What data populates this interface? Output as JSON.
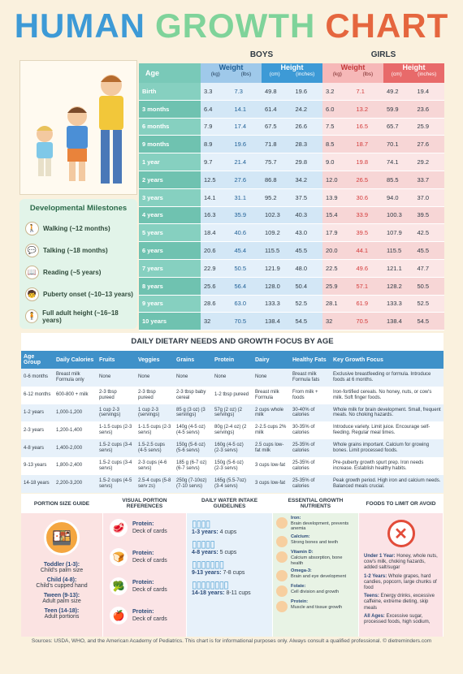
{
  "title": {
    "w1": "HUMAN",
    "w2": "GROWTH",
    "w3": "CHART"
  },
  "milestones": {
    "title": "Developmental Milestones",
    "items": [
      {
        "label": "Walking (~12 months)",
        "icon": "baby-walking-icon"
      },
      {
        "label": "Talking (~18 months)",
        "icon": "speech-icon"
      },
      {
        "label": "Reading (~5 years)",
        "icon": "book-icon"
      },
      {
        "label": "Puberty onset (~10–13 years)",
        "icon": "teen-icon"
      },
      {
        "label": "Full adult height (~16–18 years)",
        "icon": "adult-icon"
      }
    ]
  },
  "growth": {
    "boys_label": "BOYS",
    "girls_label": "GIRLS",
    "age_label": "Age",
    "weight_label": "Weight",
    "height_label": "Height",
    "units": [
      "(kg)",
      "(lbs)",
      "(cm)",
      "(inches)"
    ],
    "rows": [
      [
        "Birth",
        "3.3",
        "7.3",
        "49.8",
        "19.6",
        "3.2",
        "7.1",
        "49.2",
        "19.4"
      ],
      [
        "3 months",
        "6.4",
        "14.1",
        "61.4",
        "24.2",
        "6.0",
        "13.2",
        "59.9",
        "23.6"
      ],
      [
        "6 months",
        "7.9",
        "17.4",
        "67.5",
        "26.6",
        "7.5",
        "16.5",
        "65.7",
        "25.9"
      ],
      [
        "9 months",
        "8.9",
        "19.6",
        "71.8",
        "28.3",
        "8.5",
        "18.7",
        "70.1",
        "27.6"
      ],
      [
        "1 year",
        "9.7",
        "21.4",
        "75.7",
        "29.8",
        "9.0",
        "19.8",
        "74.1",
        "29.2"
      ],
      [
        "2 years",
        "12.5",
        "27.6",
        "86.8",
        "34.2",
        "12.0",
        "26.5",
        "85.5",
        "33.7"
      ],
      [
        "3 years",
        "14.1",
        "31.1",
        "95.2",
        "37.5",
        "13.9",
        "30.6",
        "94.0",
        "37.0"
      ],
      [
        "4 years",
        "16.3",
        "35.9",
        "102.3",
        "40.3",
        "15.4",
        "33.9",
        "100.3",
        "39.5"
      ],
      [
        "5 years",
        "18.4",
        "40.6",
        "109.2",
        "43.0",
        "17.9",
        "39.5",
        "107.9",
        "42.5"
      ],
      [
        "6 years",
        "20.6",
        "45.4",
        "115.5",
        "45.5",
        "20.0",
        "44.1",
        "115.5",
        "45.5"
      ],
      [
        "7 years",
        "22.9",
        "50.5",
        "121.9",
        "48.0",
        "22.5",
        "49.6",
        "121.1",
        "47.7"
      ],
      [
        "8 years",
        "25.6",
        "56.4",
        "128.0",
        "50.4",
        "25.9",
        "57.1",
        "128.2",
        "50.5"
      ],
      [
        "9 years",
        "28.6",
        "63.0",
        "133.3",
        "52.5",
        "28.1",
        "61.9",
        "133.3",
        "52.5"
      ],
      [
        "10 years",
        "32",
        "70.5",
        "138.4",
        "54.5",
        "32",
        "70.5",
        "138.4",
        "54.5"
      ]
    ],
    "colors": {
      "boys": "#3d9ad6",
      "girls": "#e86a6a",
      "age": "#79c9b8"
    }
  },
  "diet": {
    "title": "DAILY DIETARY NEEDS AND GROWTH FOCUS BY AGE",
    "headers": [
      "Age Group",
      "Daily Calories",
      "Fruits",
      "Veggies",
      "Grains",
      "Protein",
      "Dairy",
      "Healthy Fats",
      "Key Growth Focus"
    ],
    "rows": [
      [
        "0-6 months",
        "Breast milk Formula only",
        "None",
        "None",
        "None",
        "None",
        "None",
        "Breast milk Formula fats",
        "Exclusive breastfeeding or formula. Introduce foods at 6 months."
      ],
      [
        "6-12 months",
        "600-800 + milk",
        "2-3 tbsp pureed",
        "2-3 tbsp pureed",
        "2-3 tbsp baby cereal",
        "1-2 tbsp pureed",
        "Breast milk Formula",
        "From milk + foods",
        "Iron-fortified cereals. No honey, nuts, or cow's milk. Soft finger foods."
      ],
      [
        "1-2 years",
        "1,000-1,200",
        "1 cup 2-3 (servings)",
        "1 cup 2-3 (servings)",
        "85 g (3 oz) (3 servings)",
        "57g (2 oz) (2 servings)",
        "2 cups whole milk",
        "30-40% of calories",
        "Whole milk for brain development. Small, frequent meals. No choking hazards."
      ],
      [
        "2-3 years",
        "1,200-1,400",
        "1-1.5 cups (2-3 servs)",
        "1-1.5 cups (2-3 servs)",
        "140g (4-5 oz) (4-5 servs)",
        "80g (2-4 oz) (2 servings)",
        "2-2.5 cups 2% milk",
        "30-35% of calories",
        "Introduce variety. Limit juice. Encourage self-feeding. Regular meal times."
      ],
      [
        "4-8 years",
        "1,400-2,000",
        "1.5-2 cups (3-4 servs)",
        "1.5-2.5 cups (4-5 servs)",
        "150g (5-6 oz) (5-6 servs)",
        "160g (4-5 oz) (2-3 servs)",
        "2.5 cups low-fat milk",
        "25-35% of calories",
        "Whole grains important. Calcium for growing bones. Limit processed foods."
      ],
      [
        "9-13 years",
        "1,800-2,400",
        "1.5-2 cups (3-4 servs)",
        "2-3 cups (4-6 servs)",
        "185 g (6-7 oz) (6-7 servs)",
        "150g (5-6 oz) (2-3 servs)",
        "3 cups low-fat",
        "25-35% of calories",
        "Pre-puberty growth spurt prep. Iron needs increase. Establish healthy habits."
      ],
      [
        "14-18 years",
        "2,200-3,200",
        "1.5-2 cups (4-5 servs)",
        "2.5-4 cups (5-8 serv zs)",
        "250g (7-10oz) (7-10 servs)",
        "165g (5.5-7oz) (3-4 servs)",
        "3 cups low-fat",
        "25-35% of calories",
        "Peak growth period. High iron and calcium needs. Balanced meals crucial."
      ]
    ]
  },
  "portion": {
    "title": "PORTION SIZE GUIDE",
    "items": [
      {
        "label": "Toddler (1-3):",
        "text": "Child's palm size"
      },
      {
        "label": "Child (4-8):",
        "text": "Child's cupped hand"
      },
      {
        "label": "Tween (9-13):",
        "text": "Adult palm size"
      },
      {
        "label": "Teen (14-18):",
        "text": "Adult portions"
      }
    ]
  },
  "visual": {
    "title": "VISUAL PORTION REFERENCES",
    "items": [
      {
        "label": "Protein:",
        "text": "Deck of cards"
      },
      {
        "label": "Protein:",
        "text": "Deck of cards"
      },
      {
        "label": "Protein:",
        "text": "Deck of cards"
      },
      {
        "label": "Protein:",
        "text": "Deck of cards"
      }
    ]
  },
  "water": {
    "title": "DAILY WATER INTAKE GUIDELINES",
    "items": [
      {
        "label": "1-3 years:",
        "text": "4 cups",
        "cups": 4
      },
      {
        "label": "4-8 years:",
        "text": "5 cups",
        "cups": 5
      },
      {
        "label": "9-13 years:",
        "text": "7-8 cups",
        "cups": 7
      },
      {
        "label": "14-18 years:",
        "text": "8-11 cups",
        "cups": 8
      }
    ]
  },
  "nutrients": {
    "title": "ESSENTIAL GROWTH NUTRIENTS",
    "items": [
      {
        "label": "Iron:",
        "text": "Brain development, prevents anemia"
      },
      {
        "label": "Calcium:",
        "text": "Strong bones and teeth"
      },
      {
        "label": "Vitamin D:",
        "text": "Calcium absorption, bone health"
      },
      {
        "label": "Omega-3:",
        "text": "Brain and eye development"
      },
      {
        "label": "Folate:",
        "text": "Cell division and growth"
      },
      {
        "label": "Protein:",
        "text": "Muscle and tissue growth"
      }
    ]
  },
  "avoid": {
    "title": "FOODS TO LIMIT OR AVOID",
    "items": [
      {
        "label": "Under 1 Year:",
        "text": "Honey, whole nuts, cow's milk, choking hazards, added salt/sugar"
      },
      {
        "label": "1-2 Years:",
        "text": "Whole grapes, hard candies, popcorn, large chunks of food"
      },
      {
        "label": "Teens:",
        "text": "Energy drinks, excessive caffeine, extreme dieting, skip meals"
      },
      {
        "label": "All Ages:",
        "text": "Excessive sugar, processed foods, high sodium,"
      }
    ]
  },
  "footer": "Sources: USDA, WHO, and the American Academy of Pediatrics. This chart is for informational purposes only. Always consult a qualified professional. © dietreminders.com"
}
